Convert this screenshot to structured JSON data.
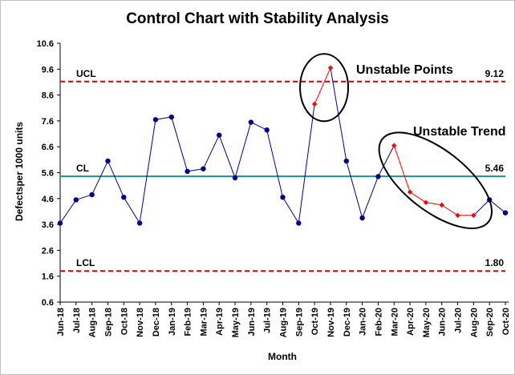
{
  "chart_data": {
    "type": "line",
    "title": "Control Chart with Stability Analysis",
    "xlabel": "Month",
    "ylabel": "Defectsper 1000 units",
    "ylim": [
      0.6,
      10.6
    ],
    "yticks": [
      "0.6",
      "1.6",
      "2.6",
      "3.6",
      "4.6",
      "5.6",
      "6.6",
      "7.6",
      "8.6",
      "9.6",
      "10.6"
    ],
    "categories": [
      "Jun-18",
      "Jul-18",
      "Aug-18",
      "Sep-18",
      "Oct-18",
      "Nov-18",
      "Dec-18",
      "Jan-19",
      "Feb-19",
      "Mar-19",
      "Apr-19",
      "May-19",
      "Jun-19",
      "Jul-19",
      "Aug-19",
      "Sep-19",
      "Oct-19",
      "Nov-19",
      "Dec-19",
      "Jan-20",
      "Feb-20",
      "Mar-20",
      "Apr-20",
      "May-20",
      "Jun-20",
      "Jul-20",
      "Aug-20",
      "Sep-20",
      "Oct-20"
    ],
    "series": [
      {
        "name": "Defects per 1000 units",
        "color": "#00008B",
        "values": [
          3.65,
          4.55,
          4.75,
          6.05,
          4.65,
          3.65,
          7.65,
          7.75,
          5.65,
          5.75,
          7.05,
          5.4,
          7.55,
          7.25,
          4.65,
          3.65,
          8.25,
          9.65,
          6.05,
          3.85,
          5.45,
          6.65,
          4.85,
          4.45,
          4.35,
          3.95,
          3.95,
          4.55,
          4.05
        ]
      }
    ],
    "unstable_point_indices": [
      16,
      17
    ],
    "unstable_trend_indices": [
      21,
      22,
      23,
      24,
      25,
      26
    ],
    "unstable_color": "#FF0000",
    "control_lines": [
      {
        "label": "UCL",
        "value": 9.12,
        "value_label": "9.12",
        "style": "dashed",
        "color": "#D00000"
      },
      {
        "label": "CL",
        "value": 5.46,
        "value_label": "5.46",
        "style": "solid",
        "color": "#1A9A94"
      },
      {
        "label": "LCL",
        "value": 1.8,
        "value_label": "1.80",
        "style": "dashed",
        "color": "#D00000"
      }
    ],
    "annotations": [
      {
        "text": "Unstable Points"
      },
      {
        "text": "Unstable Trend"
      }
    ],
    "grid": false,
    "legend": "none"
  }
}
